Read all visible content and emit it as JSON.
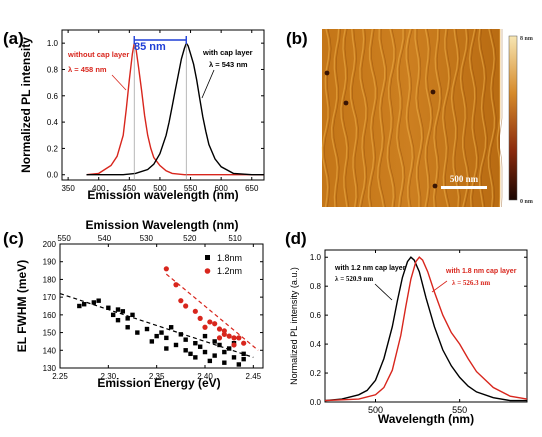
{
  "colors": {
    "red": "#d8261d",
    "black": "#000000",
    "blue": "#1f3fd6",
    "gray": "#999999"
  },
  "panels": {
    "a": {
      "label": "(a)",
      "annotation_width": "85 nm",
      "legend_red": [
        "without cap layer",
        "λ = 458 nm"
      ],
      "legend_black": [
        "with cap layer",
        "λ = 543 nm"
      ]
    },
    "b": {
      "label": "(b)",
      "scalebar": "500 nm",
      "colorbar_top": "8 nm",
      "colorbar_bottom": "0 nm"
    },
    "c": {
      "label": "(c)"
    },
    "d": {
      "label": "(d)",
      "legend_black": [
        "with 1.2 nm cap layer",
        "λ = 520.9 nm"
      ],
      "legend_red": [
        "with 1.8 nm cap layer",
        "λ = 526.3 nm"
      ]
    }
  },
  "chart_data": [
    {
      "panel": "a",
      "type": "line",
      "xlabel": "Emission wavelength (nm)",
      "ylabel": "Normalized PL intensity",
      "xlim": [
        340,
        670
      ],
      "ylim": [
        -0.04,
        1.1
      ],
      "xticks": [
        350,
        400,
        450,
        500,
        550,
        600,
        650
      ],
      "yticks": [
        0.0,
        0.2,
        0.4,
        0.6,
        0.8,
        1.0
      ],
      "series": [
        {
          "name": "without cap layer",
          "color": "#d8261d",
          "peak": 458,
          "x": [
            380,
            400,
            420,
            430,
            440,
            445,
            450,
            455,
            458,
            461,
            465,
            470,
            475,
            480,
            485,
            490,
            500,
            510,
            520,
            540,
            560,
            600,
            650,
            670
          ],
          "y": [
            0,
            0.01,
            0.07,
            0.14,
            0.3,
            0.5,
            0.72,
            0.92,
            1.0,
            0.95,
            0.82,
            0.64,
            0.45,
            0.3,
            0.2,
            0.13,
            0.07,
            0.03,
            0.01,
            0,
            0,
            0,
            0,
            0
          ]
        },
        {
          "name": "with cap layer",
          "color": "#000000",
          "peak": 543,
          "x": [
            380,
            440,
            460,
            480,
            490,
            500,
            510,
            515,
            520,
            525,
            530,
            535,
            540,
            543,
            546,
            550,
            555,
            560,
            565,
            570,
            575,
            580,
            590,
            600,
            620,
            650,
            670
          ],
          "y": [
            0,
            0,
            0.01,
            0.04,
            0.08,
            0.16,
            0.3,
            0.4,
            0.52,
            0.64,
            0.76,
            0.88,
            0.96,
            1.0,
            0.98,
            0.92,
            0.84,
            0.72,
            0.58,
            0.44,
            0.33,
            0.23,
            0.12,
            0.06,
            0.01,
            0,
            0
          ]
        }
      ]
    },
    {
      "panel": "c",
      "type": "scatter",
      "xlabel": "Emission Energy (eV)",
      "ylabel": "EL FWHM (meV)",
      "x2label": "Emission Wavelength (nm)",
      "xlim": [
        2.25,
        2.46
      ],
      "ylim": [
        130,
        200
      ],
      "xticks": [
        2.25,
        2.3,
        2.35,
        2.4,
        2.45
      ],
      "yticks": [
        130,
        140,
        150,
        160,
        170,
        180,
        190,
        200
      ],
      "x2ticks": [
        550,
        540,
        530,
        520,
        510
      ],
      "series": [
        {
          "name": "1.8nm",
          "color": "#000000",
          "marker": "square",
          "x": [
            2.27,
            2.275,
            2.285,
            2.29,
            2.3,
            2.305,
            2.31,
            2.31,
            2.315,
            2.32,
            2.32,
            2.325,
            2.33,
            2.34,
            2.345,
            2.35,
            2.355,
            2.36,
            2.36,
            2.365,
            2.37,
            2.375,
            2.38,
            2.38,
            2.385,
            2.39,
            2.39,
            2.395,
            2.4,
            2.4,
            2.405,
            2.41,
            2.41,
            2.415,
            2.42,
            2.42,
            2.425,
            2.43,
            2.43,
            2.435,
            2.44,
            2.44
          ],
          "y": [
            165,
            166,
            167,
            168,
            164,
            160,
            163,
            157,
            162,
            158,
            153,
            160,
            150,
            152,
            145,
            148,
            150,
            147,
            141,
            153,
            143,
            149,
            140,
            146,
            138,
            144,
            136,
            142,
            148,
            139,
            134,
            145,
            137,
            143,
            139,
            133,
            141,
            136,
            144,
            132,
            138,
            135
          ],
          "fit": [
            [
              2.25,
              172
            ],
            [
              2.45,
              136
            ]
          ]
        },
        {
          "name": "1.2nm",
          "color": "#d8261d",
          "marker": "circle",
          "x": [
            2.36,
            2.37,
            2.375,
            2.38,
            2.39,
            2.395,
            2.4,
            2.405,
            2.41,
            2.415,
            2.415,
            2.42,
            2.42,
            2.425,
            2.43,
            2.43,
            2.435,
            2.44
          ],
          "y": [
            186,
            177,
            168,
            165,
            162,
            158,
            153,
            156,
            155,
            147,
            152,
            149,
            151,
            148,
            147,
            143,
            147,
            144
          ],
          "fit": [
            [
              2.36,
              183
            ],
            [
              2.455,
              140
            ]
          ]
        }
      ]
    },
    {
      "panel": "d",
      "type": "line",
      "xlabel": "Wavelength (nm)",
      "ylabel": "Normalized PL intensity (a.u.)",
      "xlim": [
        470,
        590
      ],
      "ylim": [
        0,
        1.05
      ],
      "xticks": [
        500,
        550
      ],
      "yticks": [
        0.0,
        0.2,
        0.4,
        0.6,
        0.8,
        1.0
      ],
      "series": [
        {
          "name": "with 1.2 nm cap layer",
          "color": "#000000",
          "peak": 520.9,
          "x": [
            470,
            480,
            490,
            495,
            500,
            505,
            510,
            513,
            516,
            519,
            521,
            523,
            526,
            530,
            535,
            540,
            545,
            550,
            555,
            560,
            570,
            580,
            590
          ],
          "y": [
            0.01,
            0.02,
            0.05,
            0.08,
            0.15,
            0.3,
            0.52,
            0.7,
            0.86,
            0.97,
            1.0,
            0.98,
            0.9,
            0.72,
            0.52,
            0.36,
            0.25,
            0.17,
            0.11,
            0.07,
            0.03,
            0.01,
            0.01
          ]
        },
        {
          "name": "with 1.8 nm cap layer",
          "color": "#d8261d",
          "peak": 526.3,
          "x": [
            470,
            490,
            500,
            505,
            510,
            515,
            518,
            521,
            524,
            526,
            528,
            531,
            535,
            540,
            545,
            550,
            555,
            560,
            570,
            580,
            590
          ],
          "y": [
            0.01,
            0.02,
            0.05,
            0.1,
            0.22,
            0.46,
            0.66,
            0.85,
            0.97,
            1.0,
            0.98,
            0.9,
            0.76,
            0.6,
            0.48,
            0.4,
            0.3,
            0.21,
            0.1,
            0.04,
            0.02
          ]
        }
      ]
    }
  ]
}
